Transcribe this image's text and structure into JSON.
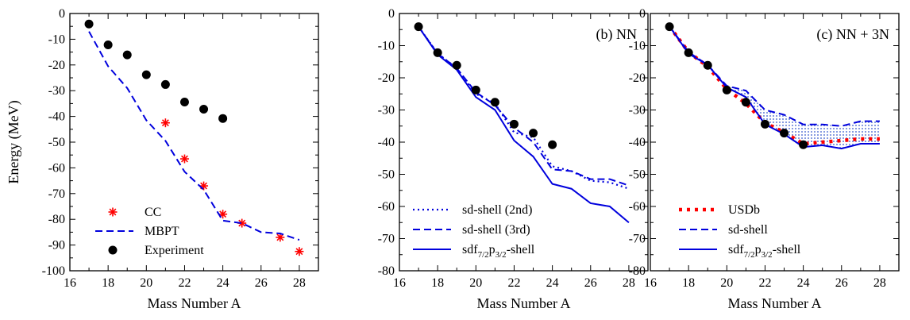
{
  "chart_data": [
    {
      "type": "line",
      "panel_label": "",
      "xlabel": "Mass Number A",
      "ylabel": "Energy (MeV)",
      "xlim": [
        16,
        29
      ],
      "ylim": [
        -100,
        0
      ],
      "xticks": [
        16,
        18,
        20,
        22,
        24,
        26,
        28
      ],
      "yticks": [
        0,
        -10,
        -20,
        -30,
        -40,
        -50,
        -60,
        -70,
        -80,
        -90,
        -100
      ],
      "grid": false,
      "legend_position": "bottom-left",
      "series": [
        {
          "name": "CC",
          "style": "red-asterisk",
          "color": "#ff0000",
          "x": [
            21,
            22,
            23,
            24,
            25,
            27,
            28
          ],
          "y": [
            -42.5,
            -56.5,
            -67,
            -78,
            -81.5,
            -87,
            -92.5
          ]
        },
        {
          "name": "MBPT",
          "style": "dashed",
          "color": "#0000dd",
          "x": [
            17,
            18,
            19,
            20,
            21,
            22,
            23,
            24,
            25,
            26,
            27,
            28
          ],
          "y": [
            -7,
            -20.5,
            -29,
            -41.5,
            -49.5,
            -61.5,
            -68.5,
            -80.5,
            -81.5,
            -85,
            -85.5,
            -88
          ]
        },
        {
          "name": "Experiment",
          "style": "black-dot",
          "color": "#000000",
          "x": [
            17,
            18,
            19,
            20,
            21,
            22,
            23,
            24
          ],
          "y": [
            -4.1,
            -12.2,
            -16.1,
            -23.8,
            -27.6,
            -34.4,
            -37.2,
            -40.8
          ]
        }
      ]
    },
    {
      "type": "line",
      "panel_label": "(b) NN",
      "xlabel": "Mass Number A",
      "ylabel": "",
      "xlim": [
        16,
        29
      ],
      "ylim": [
        -80,
        0
      ],
      "xticks": [
        16,
        18,
        20,
        22,
        24,
        26,
        28
      ],
      "yticks": [
        0,
        -10,
        -20,
        -30,
        -40,
        -50,
        -60,
        -70,
        -80
      ],
      "grid": false,
      "legend_position": "bottom-left",
      "series": [
        {
          "name": "sd-shell (2nd)",
          "style": "dotted",
          "color": "#0000dd",
          "x": [
            17,
            18,
            19,
            20,
            21,
            22,
            23,
            24,
            25,
            26,
            27,
            28
          ],
          "y": [
            -4.1,
            -12.4,
            -17,
            -25,
            -28,
            -37,
            -38.5,
            -47.5,
            -49,
            -52,
            -52.5,
            -54.5
          ]
        },
        {
          "name": "sd-shell (3rd)",
          "style": "dashed",
          "color": "#0000dd",
          "x": [
            17,
            18,
            19,
            20,
            21,
            22,
            23,
            24,
            25,
            26,
            27,
            28
          ],
          "y": [
            -4.1,
            -12.5,
            -17,
            -24.5,
            -28.5,
            -35.5,
            -40,
            -48.5,
            -49,
            -51.5,
            -51.5,
            -53.5
          ]
        },
        {
          "name": "sdf7/2p3/2-shell",
          "label_parts": {
            "base": "sdf",
            "sub1": "7/2",
            "mid": "p",
            "sub2": "3/2",
            "tail": "-shell"
          },
          "style": "solid",
          "color": "#0000dd",
          "x": [
            17,
            18,
            19,
            20,
            21,
            22,
            23,
            24,
            25,
            26,
            27,
            28
          ],
          "y": [
            -4.1,
            -12.8,
            -17.5,
            -26,
            -30,
            -39.5,
            -44.5,
            -53,
            -54.5,
            -59,
            -60,
            -65
          ]
        },
        {
          "name": "",
          "style": "black-dot",
          "color": "#000000",
          "x": [
            17,
            18,
            19,
            20,
            21,
            22,
            23,
            24
          ],
          "y": [
            -4.1,
            -12.2,
            -16.1,
            -23.8,
            -27.6,
            -34.4,
            -37.2,
            -40.8
          ]
        }
      ]
    },
    {
      "type": "line",
      "panel_label": "(c) NN + 3N",
      "xlabel": "Mass Number A",
      "ylabel": "",
      "xlim": [
        16,
        29
      ],
      "ylim": [
        -80,
        0
      ],
      "xticks": [
        16,
        18,
        20,
        22,
        24,
        26,
        28
      ],
      "yticks": [
        0,
        -10,
        -20,
        -30,
        -40,
        -50,
        -60,
        -70,
        -80
      ],
      "grid": false,
      "legend_position": "bottom-left",
      "band": {
        "color": "#3355cc",
        "between": [
          "sd-shell",
          "sdf7/2p3/2-shell"
        ],
        "from_x": 20
      },
      "series": [
        {
          "name": "USDb",
          "style": "red-dotted",
          "color": "#ff0000",
          "x": [
            17,
            18,
            19,
            20,
            21,
            22,
            23,
            24,
            25,
            26,
            27,
            28
          ],
          "y": [
            -4,
            -12,
            -16.5,
            -23.5,
            -28,
            -34,
            -37,
            -40.5,
            -40,
            -39.5,
            -39,
            -39
          ]
        },
        {
          "name": "sd-shell",
          "style": "dashed",
          "color": "#0000dd",
          "x": [
            17,
            18,
            19,
            20,
            21,
            22,
            23,
            24,
            25,
            26,
            27,
            28
          ],
          "y": [
            -4,
            -12,
            -16,
            -22.5,
            -24,
            -30,
            -31.5,
            -34.5,
            -34.5,
            -35,
            -33.5,
            -33.5
          ]
        },
        {
          "name": "sdf7/2p3/2-shell",
          "label_parts": {
            "base": "sdf",
            "sub1": "7/2",
            "mid": "p",
            "sub2": "3/2",
            "tail": "-shell"
          },
          "style": "solid",
          "color": "#0000dd",
          "x": [
            17,
            18,
            19,
            20,
            21,
            22,
            23,
            24,
            25,
            26,
            27,
            28
          ],
          "y": [
            -4,
            -12.5,
            -16,
            -23,
            -26,
            -34.5,
            -37.5,
            -41.5,
            -41,
            -42,
            -40.5,
            -40.5
          ]
        },
        {
          "name": "",
          "style": "black-dot",
          "color": "#000000",
          "x": [
            17,
            18,
            19,
            20,
            21,
            22,
            23,
            24
          ],
          "y": [
            -4.1,
            -12.2,
            -16.1,
            -23.8,
            -27.6,
            -34.4,
            -37.2,
            -40.8
          ]
        }
      ]
    }
  ]
}
